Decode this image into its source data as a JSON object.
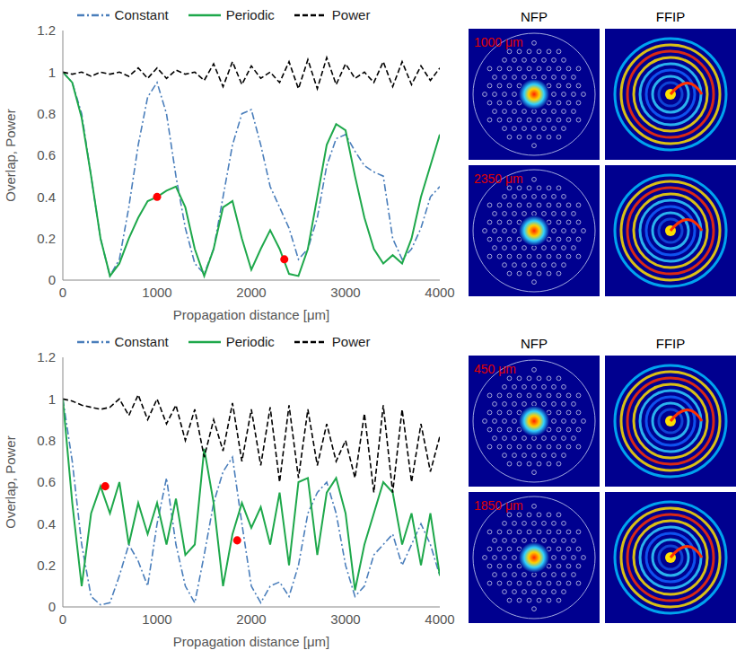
{
  "chart_data": [
    {
      "type": "line",
      "xlabel": "Propagation distance [μm]",
      "ylabel": "Overlap, Power",
      "xlim": [
        0,
        4000
      ],
      "xticks": [
        0,
        1000,
        2000,
        3000,
        4000
      ],
      "ylim": [
        0,
        1.2
      ],
      "yticks": [
        0,
        0.2,
        0.4,
        0.6,
        0.8,
        1,
        1.2
      ],
      "grid": false,
      "legend": "top",
      "x": [
        0,
        100,
        200,
        300,
        400,
        500,
        600,
        700,
        800,
        900,
        1000,
        1100,
        1200,
        1300,
        1400,
        1500,
        1600,
        1700,
        1800,
        1900,
        2000,
        2100,
        2200,
        2300,
        2400,
        2500,
        2600,
        2700,
        2800,
        2900,
        3000,
        3100,
        3200,
        3300,
        3400,
        3500,
        3600,
        3700,
        3800,
        3900,
        4000
      ],
      "series": [
        {
          "name": "Constant",
          "color": "#4a7ebb",
          "line_style": "dash-dot",
          "values": [
            1,
            0.95,
            0.8,
            0.5,
            0.2,
            0.02,
            0.1,
            0.35,
            0.65,
            0.88,
            0.95,
            0.8,
            0.5,
            0.25,
            0.08,
            0.03,
            0.15,
            0.4,
            0.65,
            0.8,
            0.82,
            0.65,
            0.45,
            0.35,
            0.25,
            0.1,
            0.15,
            0.3,
            0.55,
            0.68,
            0.7,
            0.62,
            0.55,
            0.52,
            0.5,
            0.2,
            0.1,
            0.15,
            0.25,
            0.4,
            0.45
          ]
        },
        {
          "name": "Periodic",
          "color": "#1ea84b",
          "line_style": "solid",
          "values": [
            1,
            0.95,
            0.78,
            0.5,
            0.2,
            0.02,
            0.08,
            0.2,
            0.3,
            0.38,
            0.4,
            0.43,
            0.45,
            0.35,
            0.15,
            0.02,
            0.15,
            0.35,
            0.38,
            0.2,
            0.05,
            0.15,
            0.24,
            0.15,
            0.03,
            0.02,
            0.15,
            0.4,
            0.65,
            0.75,
            0.72,
            0.5,
            0.3,
            0.15,
            0.08,
            0.12,
            0.08,
            0.2,
            0.4,
            0.55,
            0.7
          ]
        },
        {
          "name": "Power",
          "color": "#000000",
          "line_style": "dashed",
          "values": [
            1,
            0.99,
            1,
            0.98,
            1,
            0.99,
            1,
            0.98,
            1.02,
            0.97,
            1.02,
            0.97,
            1.01,
            0.99,
            1,
            0.96,
            1.04,
            0.93,
            1.05,
            0.94,
            1.03,
            0.97,
            1,
            0.95,
            1.05,
            0.92,
            1.06,
            0.92,
            1.07,
            0.94,
            1.04,
            0.97,
            1,
            0.95,
            1.05,
            0.93,
            1.05,
            0.94,
            1.03,
            0.96,
            1.02
          ]
        },
        {
          "type": "scatter",
          "color": "#ff0000",
          "marker": "circle",
          "x": [
            1000,
            2350
          ],
          "values": [
            0.4,
            0.1
          ]
        }
      ]
    },
    {
      "type": "line",
      "xlabel": "Propagation distance [μm]",
      "ylabel": "Overlap, Power",
      "xlim": [
        0,
        4000
      ],
      "xticks": [
        0,
        1000,
        2000,
        3000,
        4000
      ],
      "ylim": [
        0,
        1.2
      ],
      "yticks": [
        0,
        0.2,
        0.4,
        0.6,
        0.8,
        1,
        1.2
      ],
      "grid": false,
      "legend": "top",
      "x": [
        0,
        100,
        200,
        300,
        400,
        500,
        600,
        700,
        800,
        900,
        1000,
        1100,
        1200,
        1300,
        1400,
        1500,
        1600,
        1700,
        1800,
        1900,
        2000,
        2100,
        2200,
        2300,
        2400,
        2500,
        2600,
        2700,
        2800,
        2900,
        3000,
        3100,
        3200,
        3300,
        3400,
        3500,
        3600,
        3700,
        3800,
        3900,
        4000
      ],
      "series": [
        {
          "name": "Constant",
          "color": "#4a7ebb",
          "line_style": "dash-dot",
          "values": [
            1,
            0.7,
            0.3,
            0.05,
            0.01,
            0.02,
            0.15,
            0.3,
            0.22,
            0.1,
            0.4,
            0.62,
            0.3,
            0.1,
            0.02,
            0.25,
            0.5,
            0.65,
            0.72,
            0.4,
            0.1,
            0.02,
            0.1,
            0.12,
            0.05,
            0.2,
            0.45,
            0.55,
            0.6,
            0.45,
            0.2,
            0.05,
            0.1,
            0.25,
            0.3,
            0.35,
            0.2,
            0.3,
            0.4,
            0.3,
            0.15
          ]
        },
        {
          "name": "Periodic",
          "color": "#1ea84b",
          "line_style": "solid",
          "values": [
            1,
            0.5,
            0.1,
            0.45,
            0.58,
            0.45,
            0.6,
            0.3,
            0.5,
            0.35,
            0.5,
            0.3,
            0.52,
            0.25,
            0.3,
            0.76,
            0.5,
            0.1,
            0.35,
            0.5,
            0.38,
            0.48,
            0.3,
            0.55,
            0.2,
            0.6,
            0.62,
            0.25,
            0.55,
            0.62,
            0.45,
            0.08,
            0.3,
            0.45,
            0.6,
            0.55,
            0.3,
            0.45,
            0.2,
            0.45,
            0.15
          ]
        },
        {
          "name": "Power",
          "color": "#000000",
          "line_style": "dashed",
          "values": [
            1,
            0.99,
            0.97,
            0.96,
            0.95,
            0.96,
            1,
            0.92,
            1.02,
            0.9,
            1,
            0.88,
            0.97,
            0.8,
            0.95,
            0.72,
            0.9,
            0.75,
            0.98,
            0.7,
            0.95,
            0.68,
            0.96,
            0.6,
            0.97,
            0.62,
            0.95,
            0.68,
            0.88,
            0.7,
            0.8,
            0.62,
            0.93,
            0.55,
            0.97,
            0.55,
            0.95,
            0.6,
            0.88,
            0.65,
            0.82
          ]
        },
        {
          "type": "scatter",
          "color": "#ff0000",
          "marker": "circle",
          "x": [
            450,
            1850
          ],
          "values": [
            0.58,
            0.32
          ]
        }
      ]
    }
  ],
  "image_panels": [
    {
      "headers": [
        "NFP",
        "FFIP"
      ],
      "rows": [
        "1000 μm",
        "2350 μm"
      ]
    },
    {
      "headers": [
        "NFP",
        "FFIP"
      ],
      "rows": [
        "450 μm",
        "1850 μm"
      ]
    }
  ]
}
